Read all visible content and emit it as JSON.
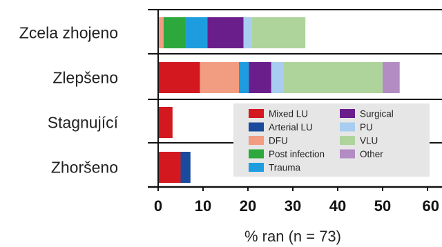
{
  "chart_data": {
    "type": "bar",
    "orientation": "horizontal",
    "stacked": true,
    "xlabel": "% ran (n = 73)",
    "xlim": [
      0,
      60
    ],
    "xticks": [
      "0",
      "10",
      "20",
      "30",
      "40",
      "50",
      "60"
    ],
    "grid": false,
    "legend_position": "inside-right",
    "categories": [
      "Zcela zhojeno",
      "Zlepšeno",
      "Stagnující",
      "Zhoršeno"
    ],
    "series": [
      {
        "name": "Mixed LU",
        "color": "#d4181f",
        "values": [
          0,
          9.3,
          3.2,
          5.0
        ]
      },
      {
        "name": "Arterial LU",
        "color": "#1a4a9c",
        "values": [
          0,
          0,
          0,
          2.2
        ]
      },
      {
        "name": "DFU",
        "color": "#f29c82",
        "values": [
          1.2,
          8.7,
          0,
          0
        ]
      },
      {
        "name": "Post infection",
        "color": "#2ca83c",
        "values": [
          4.8,
          0,
          0,
          0
        ]
      },
      {
        "name": "Trauma",
        "color": "#1d9de0",
        "values": [
          5.0,
          2.2,
          0,
          0
        ]
      },
      {
        "name": "Surgical",
        "color": "#6a1e8c",
        "values": [
          8.0,
          5.0,
          0,
          0
        ]
      },
      {
        "name": "PU",
        "color": "#a8cdf0",
        "values": [
          1.8,
          2.8,
          0,
          0
        ]
      },
      {
        "name": "VLU",
        "color": "#aed49b",
        "values": [
          12.0,
          22.0,
          0,
          0
        ]
      },
      {
        "name": "Other",
        "color": "#b38cc4",
        "values": [
          0,
          3.8,
          0,
          0
        ]
      }
    ],
    "legend_columns": [
      [
        "Mixed LU",
        "Arterial LU",
        "DFU",
        "Post infection",
        "Trauma"
      ],
      [
        "Surgical",
        "PU",
        "VLU",
        "Other"
      ]
    ],
    "legend_background": "#e6e6e6"
  }
}
